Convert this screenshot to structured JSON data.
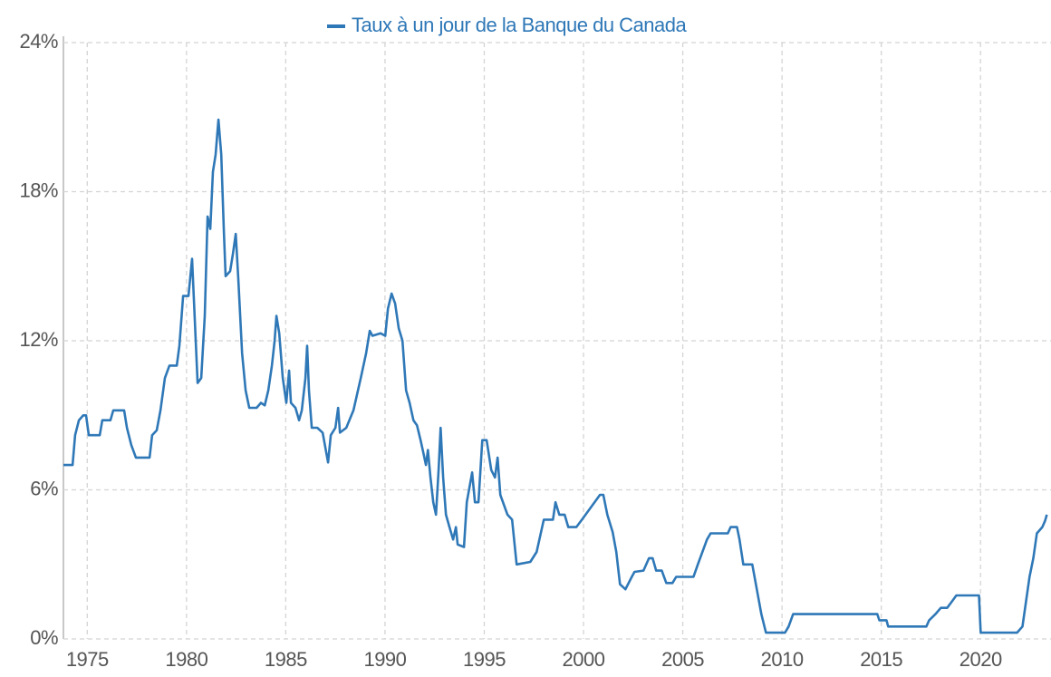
{
  "chart_data": {
    "type": "line",
    "legend": "top",
    "grid": true,
    "xlim": [
      1973.8,
      2023.55
    ],
    "ylim": [
      0,
      24
    ],
    "xticks": [
      1975,
      1980,
      1985,
      1990,
      1995,
      2000,
      2005,
      2010,
      2015,
      2020
    ],
    "yticks": [
      {
        "value": 0,
        "label": "0%"
      },
      {
        "value": 6,
        "label": "6%"
      },
      {
        "value": 12,
        "label": "12%"
      },
      {
        "value": 18,
        "label": "18%"
      },
      {
        "value": 24,
        "label": "24%"
      }
    ],
    "x": [
      1973.8,
      1974.26,
      1974.39,
      1974.58,
      1974.8,
      1974.94,
      1975.08,
      1975.63,
      1975.76,
      1976.17,
      1976.31,
      1976.86,
      1977.0,
      1977.22,
      1977.45,
      1978.14,
      1978.27,
      1978.5,
      1978.69,
      1978.91,
      1979.14,
      1979.51,
      1979.64,
      1979.83,
      1980.1,
      1980.28,
      1980.38,
      1980.56,
      1980.74,
      1980.92,
      1981.06,
      1981.2,
      1981.33,
      1981.47,
      1981.61,
      1981.75,
      1981.88,
      1981.97,
      1982.2,
      1982.34,
      1982.48,
      1982.61,
      1982.8,
      1982.98,
      1983.16,
      1983.53,
      1983.75,
      1983.94,
      1984.12,
      1984.3,
      1984.44,
      1984.53,
      1984.67,
      1984.85,
      1985.03,
      1985.17,
      1985.26,
      1985.49,
      1985.67,
      1985.81,
      1985.99,
      1986.08,
      1986.17,
      1986.31,
      1986.59,
      1986.86,
      1987.04,
      1987.13,
      1987.27,
      1987.5,
      1987.64,
      1987.73,
      1988.05,
      1988.41,
      1988.78,
      1989.05,
      1989.23,
      1989.37,
      1989.78,
      1990.01,
      1990.15,
      1990.33,
      1990.51,
      1990.69,
      1990.88,
      1991.06,
      1991.24,
      1991.43,
      1991.61,
      1991.79,
      1991.93,
      1992.06,
      1992.16,
      1992.29,
      1992.43,
      1992.57,
      1992.7,
      1992.8,
      1992.93,
      1993.07,
      1993.25,
      1993.43,
      1993.57,
      1993.66,
      1993.98,
      1994.12,
      1994.39,
      1994.53,
      1994.71,
      1994.9,
      1995.12,
      1995.35,
      1995.54,
      1995.67,
      1995.81,
      1996.17,
      1996.4,
      1996.63,
      1997.32,
      1997.64,
      1998.0,
      1998.46,
      1998.59,
      1998.78,
      1999.05,
      1999.23,
      1999.64,
      1999.92,
      2000.83,
      2001.0,
      2001.2,
      2001.47,
      2001.65,
      2001.84,
      2002.11,
      2002.43,
      2002.57,
      2003.02,
      2003.3,
      2003.48,
      2003.66,
      2003.94,
      2004.17,
      2004.48,
      2004.67,
      2005.54,
      2005.76,
      2006.22,
      2006.4,
      2007.27,
      2007.41,
      2007.73,
      2007.86,
      2008.05,
      2008.5,
      2008.73,
      2008.96,
      2009.19,
      2010.15,
      2010.33,
      2010.56,
      2014.8,
      2014.9,
      2015.26,
      2015.35,
      2017.27,
      2017.41,
      2017.73,
      2018.0,
      2018.32,
      2018.55,
      2018.78,
      2019.92,
      2020.01,
      2021.84,
      2022.11,
      2022.29,
      2022.47,
      2022.66,
      2022.84,
      2023.11,
      2023.25,
      2023.34
    ],
    "series": [
      {
        "name": "Taux à un jour de la Banque du Canada",
        "color": "#2f78b7",
        "values": [
          7.0,
          7.0,
          8.2,
          8.8,
          9.0,
          9.0,
          8.2,
          8.2,
          8.8,
          8.8,
          9.2,
          9.2,
          8.5,
          7.8,
          7.3,
          7.3,
          8.2,
          8.4,
          9.2,
          10.5,
          11.0,
          11.0,
          11.8,
          13.8,
          13.8,
          15.3,
          13.5,
          10.3,
          10.5,
          13.0,
          17.0,
          16.5,
          18.8,
          19.5,
          20.9,
          19.5,
          16.5,
          14.6,
          14.8,
          15.5,
          16.3,
          14.5,
          11.5,
          10.0,
          9.3,
          9.3,
          9.5,
          9.4,
          10.0,
          11.0,
          12.0,
          13.0,
          12.3,
          10.5,
          9.5,
          10.8,
          9.5,
          9.3,
          8.8,
          9.2,
          10.5,
          11.8,
          10.0,
          8.5,
          8.5,
          8.3,
          7.5,
          7.1,
          8.2,
          8.5,
          9.3,
          8.3,
          8.5,
          9.2,
          10.5,
          11.5,
          12.4,
          12.2,
          12.3,
          12.2,
          13.3,
          13.9,
          13.5,
          12.5,
          12.0,
          10.0,
          9.5,
          8.8,
          8.6,
          8.0,
          7.5,
          7.0,
          7.6,
          6.5,
          5.5,
          5.0,
          6.8,
          8.5,
          6.5,
          5.0,
          4.5,
          4.0,
          4.5,
          3.8,
          3.7,
          5.5,
          6.7,
          5.5,
          5.5,
          8.0,
          8.0,
          6.8,
          6.5,
          7.3,
          5.8,
          5.0,
          4.8,
          3.0,
          3.1,
          3.5,
          4.8,
          4.8,
          5.5,
          5.0,
          5.0,
          4.5,
          4.5,
          4.8,
          5.8,
          5.8,
          5.0,
          4.3,
          3.5,
          2.2,
          2.0,
          2.5,
          2.7,
          2.75,
          3.25,
          3.25,
          2.75,
          2.75,
          2.25,
          2.25,
          2.5,
          2.5,
          3.0,
          4.0,
          4.25,
          4.25,
          4.5,
          4.5,
          4.0,
          3.0,
          3.0,
          2.0,
          1.0,
          0.25,
          0.25,
          0.5,
          1.0,
          1.0,
          0.75,
          0.75,
          0.5,
          0.5,
          0.75,
          1.0,
          1.25,
          1.25,
          1.5,
          1.75,
          1.75,
          0.25,
          0.25,
          0.5,
          1.5,
          2.5,
          3.25,
          4.25,
          4.5,
          4.75,
          5.0
        ]
      }
    ]
  }
}
